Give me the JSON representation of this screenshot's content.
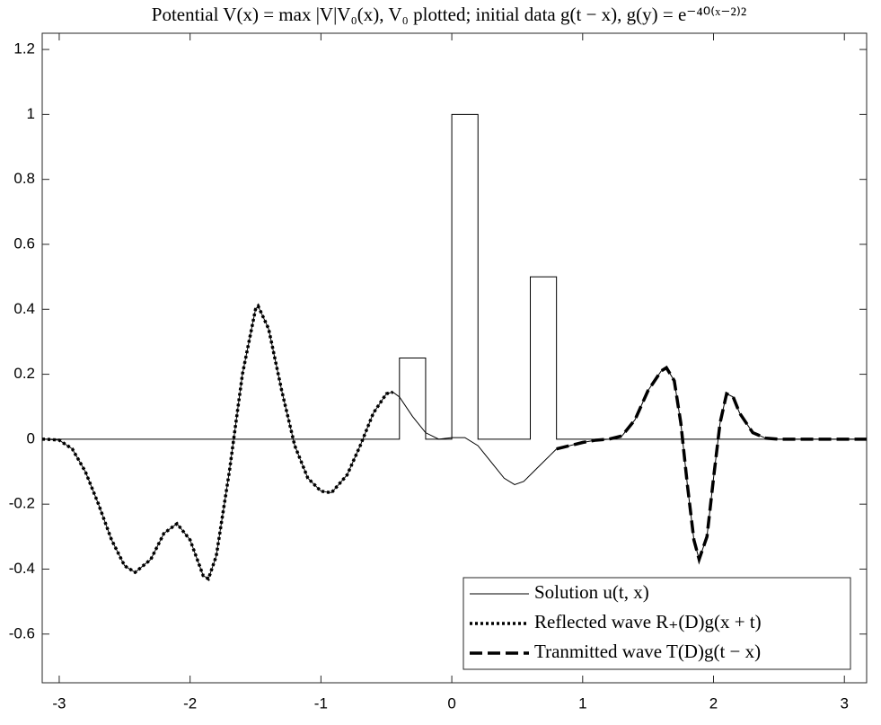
{
  "chart_data": {
    "type": "line",
    "title": "Potential V(x) = max |V|V₀(x), V₀ plotted; initial data g(t − x), g(y) = e⁻⁴⁰⁽ˣ⁻²⁾²",
    "xlim": [
      -3.13,
      3.17
    ],
    "ylim": [
      -0.75,
      1.25
    ],
    "xticks": [
      -3,
      -2,
      -1,
      0,
      1,
      2,
      3
    ],
    "yticks": [
      -0.6,
      -0.4,
      -0.2,
      0,
      0.2,
      0.4,
      0.6,
      0.8,
      1,
      1.2
    ],
    "legend": "lower right",
    "series": [
      {
        "name": "Solution u(t, x)",
        "color": "#000000",
        "style": "solid",
        "width": 1,
        "x": [
          -3.13,
          -3.1,
          -3.0,
          -2.9,
          -2.8,
          -2.7,
          -2.6,
          -2.5,
          -2.42,
          -2.3,
          -2.2,
          -2.1,
          -2.0,
          -1.9,
          -1.86,
          -1.8,
          -1.7,
          -1.65,
          -1.6,
          -1.5,
          -1.48,
          -1.4,
          -1.3,
          -1.2,
          -1.1,
          -1.0,
          -0.92,
          -0.8,
          -0.7,
          -0.6,
          -0.5,
          -0.45,
          -0.4,
          -0.3,
          -0.2,
          -0.1,
          0,
          0.1,
          0.2,
          0.3,
          0.4,
          0.48,
          0.55,
          0.65,
          0.75,
          0.8,
          0.9,
          1.0,
          1.1,
          1.2,
          1.3,
          1.4,
          1.5,
          1.6,
          1.64,
          1.7,
          1.75,
          1.8,
          1.85,
          1.89,
          1.95,
          2.0,
          2.05,
          2.1,
          2.15,
          2.2,
          2.3,
          2.4,
          2.5,
          3.17
        ],
        "values": [
          0,
          0,
          -0.003,
          -0.03,
          -0.1,
          -0.2,
          -0.31,
          -0.39,
          -0.41,
          -0.37,
          -0.29,
          -0.26,
          -0.31,
          -0.42,
          -0.43,
          -0.36,
          -0.1,
          0.05,
          0.2,
          0.4,
          0.41,
          0.34,
          0.15,
          -0.02,
          -0.12,
          -0.16,
          -0.165,
          -0.11,
          -0.02,
          0.08,
          0.14,
          0.145,
          0.13,
          0.07,
          0.02,
          0,
          0.005,
          0.005,
          -0.02,
          -0.07,
          -0.12,
          -0.14,
          -0.13,
          -0.09,
          -0.05,
          -0.03,
          -0.02,
          -0.01,
          -0.003,
          0,
          0.01,
          0.06,
          0.15,
          0.21,
          0.22,
          0.18,
          0.05,
          -0.14,
          -0.31,
          -0.37,
          -0.3,
          -0.12,
          0.05,
          0.14,
          0.13,
          0.08,
          0.02,
          0.003,
          0,
          0
        ]
      },
      {
        "name": "Reflected wave R₊(D)g(x + t)",
        "color": "#000000",
        "style": "dotted",
        "width": 3.5,
        "x": [
          -3.13,
          -3.1,
          -3.0,
          -2.9,
          -2.8,
          -2.7,
          -2.6,
          -2.5,
          -2.42,
          -2.3,
          -2.2,
          -2.1,
          -2.0,
          -1.9,
          -1.86,
          -1.8,
          -1.7,
          -1.65,
          -1.6,
          -1.5,
          -1.48,
          -1.4,
          -1.3,
          -1.2,
          -1.1,
          -1.0,
          -0.92,
          -0.8,
          -0.7,
          -0.6,
          -0.5,
          -0.45
        ],
        "values": [
          0,
          0,
          -0.003,
          -0.03,
          -0.1,
          -0.2,
          -0.31,
          -0.39,
          -0.41,
          -0.37,
          -0.29,
          -0.26,
          -0.31,
          -0.42,
          -0.43,
          -0.36,
          -0.1,
          0.05,
          0.2,
          0.4,
          0.41,
          0.34,
          0.15,
          -0.02,
          -0.12,
          -0.16,
          -0.165,
          -0.11,
          -0.02,
          0.08,
          0.14,
          0.145
        ]
      },
      {
        "name": "Tranmitted wave T(D)g(t − x)",
        "color": "#000000",
        "style": "dashed",
        "width": 3.5,
        "x": [
          0.8,
          0.9,
          1.0,
          1.1,
          1.2,
          1.3,
          1.4,
          1.5,
          1.6,
          1.64,
          1.7,
          1.75,
          1.8,
          1.85,
          1.89,
          1.95,
          2.0,
          2.05,
          2.1,
          2.15,
          2.2,
          2.3,
          2.4,
          2.5,
          3.17
        ],
        "values": [
          -0.03,
          -0.02,
          -0.01,
          -0.003,
          0,
          0.01,
          0.06,
          0.15,
          0.21,
          0.22,
          0.18,
          0.05,
          -0.14,
          -0.31,
          -0.37,
          -0.3,
          -0.12,
          0.05,
          0.14,
          0.13,
          0.08,
          0.02,
          0.003,
          0,
          0
        ]
      },
      {
        "color": "#000000",
        "style": "solid",
        "width": 1,
        "x": [
          -3.13,
          -0.4,
          -0.4,
          -0.2,
          -0.2,
          0,
          0,
          0.2,
          0.2,
          0.6,
          0.6,
          0.8,
          0.8,
          3.17
        ],
        "values": [
          0,
          0,
          0.25,
          0.25,
          0,
          0,
          1,
          1,
          0,
          0,
          0.5,
          0.5,
          0,
          0
        ]
      }
    ]
  }
}
